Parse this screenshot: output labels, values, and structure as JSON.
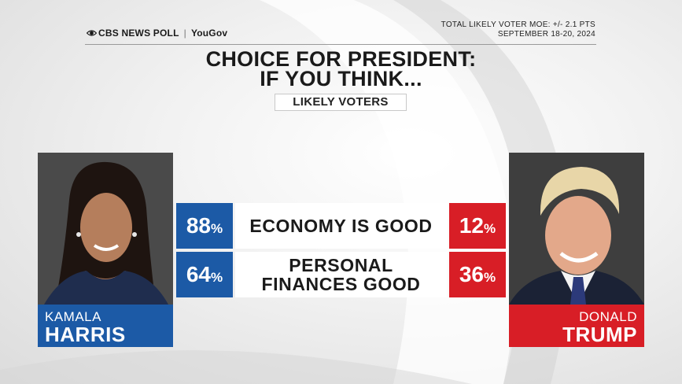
{
  "header": {
    "brand_cbs": "CBS NEWS POLL",
    "brand_partner": "YouGov",
    "moe_line1": "TOTAL LIKELY VOTER MOE: +/- 2.1 PTS",
    "moe_line2": "SEPTEMBER 18-20, 2024"
  },
  "title_line1": "CHOICE FOR PRESIDENT:",
  "title_line2": "IF YOU THINK...",
  "subtitle": "LIKELY VOTERS",
  "candidates": {
    "left": {
      "first": "KAMALA",
      "last": "HARRIS",
      "color": "#1c5aa6"
    },
    "right": {
      "first": "DONALD",
      "last": "TRUMP",
      "color": "#d81e26"
    }
  },
  "chart_data": {
    "type": "table",
    "title": "CHOICE FOR PRESIDENT: IF YOU THINK...",
    "subtitle": "LIKELY VOTERS",
    "unit": "%",
    "categories": [
      "ECONOMY IS GOOD",
      "PERSONAL\nFINANCES GOOD"
    ],
    "series": [
      {
        "name": "KAMALA HARRIS",
        "color": "#1c5aa6",
        "values": [
          88,
          64
        ]
      },
      {
        "name": "DONALD TRUMP",
        "color": "#d81e26",
        "values": [
          12,
          36
        ]
      }
    ]
  }
}
